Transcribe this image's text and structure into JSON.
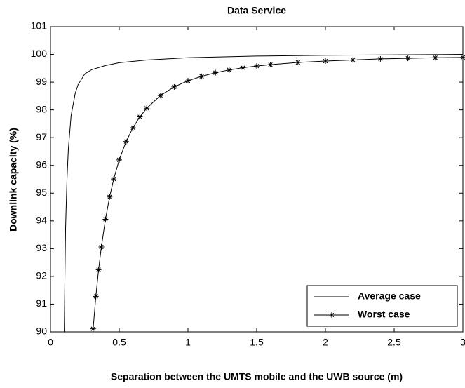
{
  "chart_data": {
    "type": "line",
    "title": "Data Service",
    "xlabel": "Separation between the UMTS mobile and the UWB source  (m)",
    "ylabel": "Downlink  capacity  (%)",
    "xlim": [
      0,
      3
    ],
    "xticks": [
      0,
      0.5,
      1,
      1.5,
      2,
      2.5,
      3
    ],
    "ylim": [
      90,
      101
    ],
    "yticks": [
      90,
      91,
      92,
      93,
      94,
      95,
      96,
      97,
      98,
      99,
      100,
      101
    ],
    "legend": "lower right",
    "series": [
      {
        "name": "Average case",
        "color": "#000000",
        "marker": "none",
        "x": [
          0.1,
          0.105,
          0.11,
          0.12,
          0.13,
          0.15,
          0.18,
          0.2,
          0.25,
          0.3,
          0.4,
          0.5,
          0.7,
          1,
          1.5,
          2,
          3
        ],
        "values": [
          90,
          92,
          93.8,
          95.5,
          96.6,
          97.8,
          98.6,
          98.9,
          99.3,
          99.45,
          99.6,
          99.7,
          99.8,
          99.88,
          99.94,
          99.97,
          100
        ]
      },
      {
        "name": "Worst case",
        "color": "#000000",
        "marker": "*",
        "x": [
          0.31,
          0.33,
          0.35,
          0.37,
          0.4,
          0.43,
          0.46,
          0.5,
          0.55,
          0.6,
          0.65,
          0.7,
          0.8,
          0.9,
          1.0,
          1.1,
          1.2,
          1.3,
          1.4,
          1.5,
          1.6,
          1.8,
          2.0,
          2.2,
          2.4,
          2.6,
          2.8,
          3.0
        ],
        "values": [
          90.11,
          91.28,
          92.24,
          93.06,
          94.06,
          94.86,
          95.51,
          96.2,
          96.86,
          97.36,
          97.75,
          98.06,
          98.52,
          98.83,
          99.05,
          99.21,
          99.34,
          99.44,
          99.52,
          99.58,
          99.63,
          99.71,
          99.76,
          99.8,
          99.84,
          99.86,
          99.88,
          99.89
        ]
      }
    ]
  }
}
